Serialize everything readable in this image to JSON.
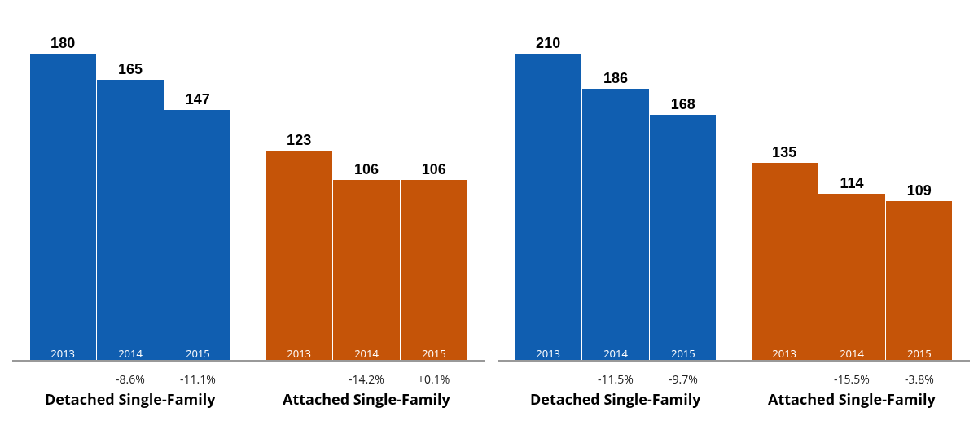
{
  "chart_data": [
    {
      "type": "bar",
      "categories": [
        "2013",
        "2014",
        "2015",
        "2013",
        "2014",
        "2015"
      ],
      "series": [
        {
          "name": "Detached Single-Family",
          "color": "#105eb0",
          "values": [
            180,
            165,
            147,
            null,
            null,
            null
          ]
        },
        {
          "name": "Attached Single-Family",
          "color": "#c55408",
          "values": [
            null,
            null,
            null,
            123,
            106,
            106
          ]
        }
      ],
      "annotations": [
        "-8.6%",
        "-11.1%",
        "-14.2%",
        "+0.1%"
      ],
      "data_labels": true,
      "tick_labels": "x",
      "grid": false,
      "legend": false
    },
    {
      "type": "bar",
      "categories": [
        "2013",
        "2014",
        "2015",
        "2013",
        "2014",
        "2015"
      ],
      "series": [
        {
          "name": "Detached Single-Family",
          "color": "#105eb0",
          "values": [
            210,
            186,
            168,
            null,
            null,
            null
          ]
        },
        {
          "name": "Attached Single-Family",
          "color": "#c55408",
          "values": [
            null,
            null,
            null,
            135,
            114,
            109
          ]
        }
      ],
      "annotations": [
        "-11.5%",
        "-9.7%",
        "-15.5%",
        "-3.8%"
      ],
      "data_labels": true,
      "tick_labels": "x",
      "grid": false,
      "legend": false
    }
  ]
}
